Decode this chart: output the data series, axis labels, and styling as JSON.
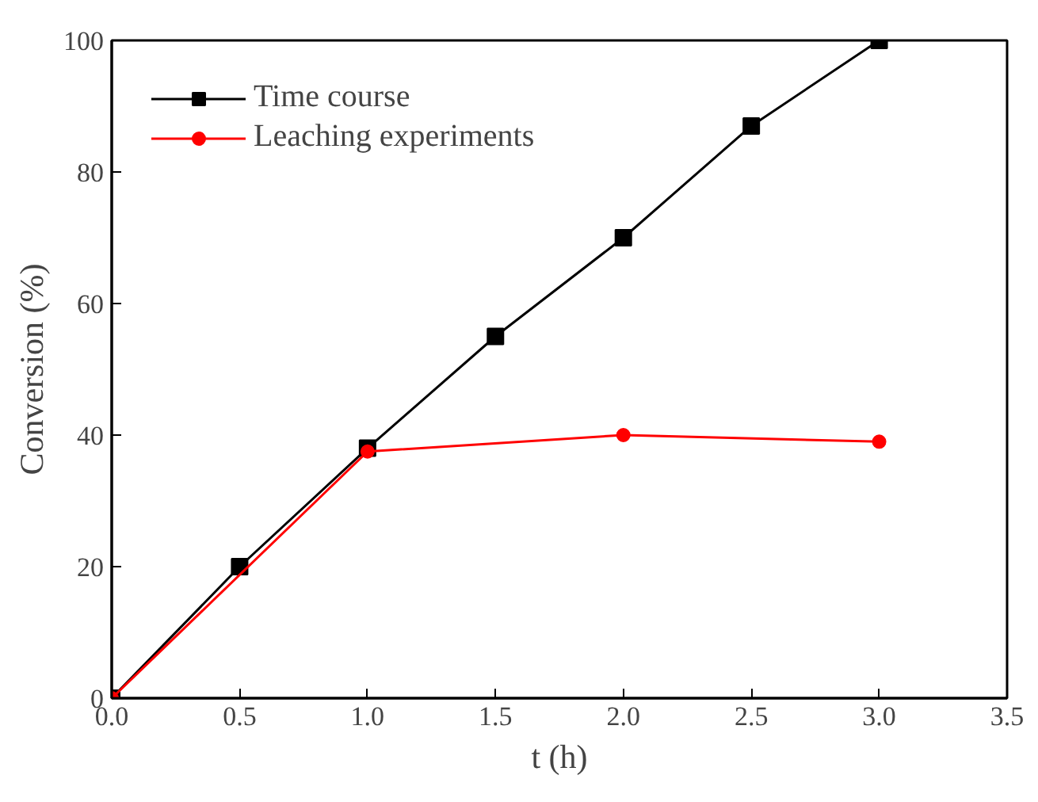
{
  "chart_data": {
    "type": "line",
    "xlabel": "t (h)",
    "ylabel": "Conversion (%)",
    "xlim": [
      0,
      3.5
    ],
    "xticks": [
      {
        "value": 0,
        "label": "0.0"
      },
      {
        "value": 0.5,
        "label": "0.5"
      },
      {
        "value": 1,
        "label": "1.0"
      },
      {
        "value": 1.5,
        "label": "1.5"
      },
      {
        "value": 2,
        "label": "2.0"
      },
      {
        "value": 2.5,
        "label": "2.5"
      },
      {
        "value": 3,
        "label": "3.0"
      },
      {
        "value": 3.5,
        "label": "3.5"
      }
    ],
    "ylim": [
      0,
      100
    ],
    "yticks": [
      0,
      20,
      40,
      60,
      80,
      100
    ],
    "grid": false,
    "legend": "top left",
    "line_style": "solid",
    "series": [
      {
        "name": "Time course",
        "color": "#000000",
        "marker": "square",
        "x": [
          0,
          0.5,
          1,
          1.5,
          2,
          2.5,
          3
        ],
        "values": [
          0,
          20,
          38,
          55,
          70,
          87,
          100
        ]
      },
      {
        "name": "Leaching experiments",
        "color": "#ff0000",
        "marker": "circle",
        "x": [
          0,
          1,
          2,
          3
        ],
        "values": [
          0,
          37.5,
          40,
          39
        ]
      }
    ]
  }
}
